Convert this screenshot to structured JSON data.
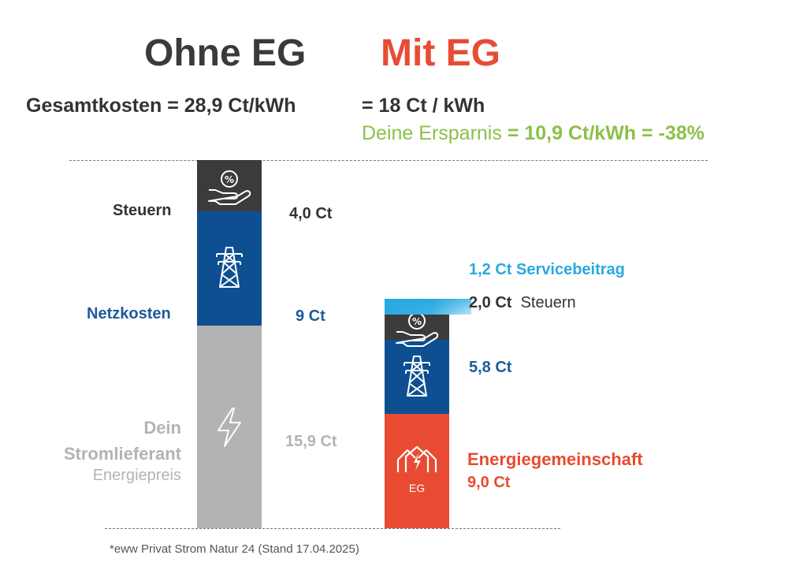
{
  "titles": {
    "ohne": "Ohne EG",
    "mit": "Mit EG"
  },
  "totals": {
    "ohne_text": "Gesamtkosten  = 28,9 Ct/kWh",
    "mit_text": "= 18 Ct / kWh",
    "savings_label": "Deine Ersparnis ",
    "savings_value": "= 10,9 Ct/kWh = -38%"
  },
  "colors": {
    "steuern": "#3b3b3b",
    "netz": "#0e4f92",
    "strom": "#b3b3b3",
    "eg": "#e84b31",
    "service": "#29a8e0",
    "savings": "#8cc04b"
  },
  "chart_data": [
    {
      "type": "bar",
      "name": "Ohne EG",
      "unit": "Ct/kWh",
      "total": 28.9,
      "segments": [
        {
          "label": "Dein Stromlieferant",
          "sublabel": "Energiepreis",
          "value": 15.9,
          "value_label": "15,9 Ct",
          "color": "#b3b3b3",
          "icon": "lightning-icon"
        },
        {
          "label": "Netzkosten",
          "value": 9.0,
          "value_label": "9 Ct",
          "color": "#0e4f92",
          "icon": "power-pylon-icon"
        },
        {
          "label": "Steuern",
          "value": 4.0,
          "value_label": "4,0 Ct",
          "color": "#3b3b3b",
          "icon": "hand-percent-icon"
        }
      ]
    },
    {
      "type": "bar",
      "name": "Mit EG",
      "unit": "Ct/kWh",
      "total": 18.0,
      "segments": [
        {
          "label": "Energiegemeinschaft",
          "value": 9.0,
          "value_label": "9,0 Ct",
          "color": "#e84b31",
          "icon": "community-houses-icon",
          "icon_text": "EG"
        },
        {
          "label": "",
          "value": 5.8,
          "value_label": "5,8 Ct",
          "color": "#0e4f92",
          "icon": "power-pylon-icon"
        },
        {
          "label": "Steuern",
          "value": 2.0,
          "value_label": "2,0 Ct",
          "color": "#3b3b3b",
          "icon": "hand-percent-icon"
        },
        {
          "label": "Servicebeitrag",
          "value": 1.2,
          "value_label": "1,2 Ct",
          "color": "#29a8e0",
          "icon": ""
        }
      ]
    }
  ],
  "footnote": "*eww Privat Strom Natur 24 (Stand 17.04.2025)"
}
